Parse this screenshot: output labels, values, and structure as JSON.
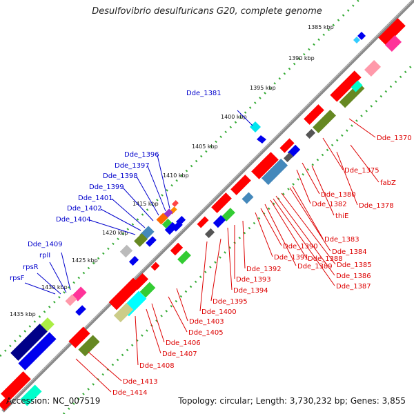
{
  "title": "Desulfovibrio desulfuricans G20, complete genome",
  "footer": {
    "accession": "Accession: NC_007519",
    "summary": "Topology: circular; Length: 3,730,232 bp; Genes: 3,855"
  },
  "ticks": [
    "1385 kbp",
    "1390 kbp",
    "1395 kbp",
    "1400 kbp",
    "1405 kbp",
    "1410 kbp",
    "1415 kbp",
    "1420 kbp",
    "1425 kbp",
    "1430 kbp",
    "1435 kbp"
  ],
  "forward_gene_labels": [
    "Dde_1381",
    "Dde_1396",
    "Dde_1397",
    "Dde_1398",
    "Dde_1399",
    "Dde_1401",
    "Dde_1402",
    "Dde_1404",
    "Dde_1409",
    "rplI",
    "rpsR",
    "rpsF"
  ],
  "reverse_gene_labels": [
    "Dde_1370",
    "Dde_1375",
    "fabZ",
    "Dde_1378",
    "Dde_1380",
    "Dde_1382",
    "thiE",
    "Dde_1383",
    "Dde_1384",
    "Dde_1385",
    "Dde_1386",
    "Dde_1387",
    "Dde_1388",
    "Dde_1389",
    "Dde_1390",
    "Dde_1391",
    "Dde_1392",
    "Dde_1393",
    "Dde_1394",
    "Dde_1395",
    "Dde_1400",
    "Dde_1403",
    "Dde_1405",
    "Dde_1406",
    "Dde_1407",
    "Dde_1408",
    "Dde_1413",
    "Dde_1414"
  ],
  "colors": {
    "forward_label": "#0000cc",
    "reverse_label": "#dd0000",
    "backbone": "#888888",
    "tick_dots": "#33aa33"
  }
}
